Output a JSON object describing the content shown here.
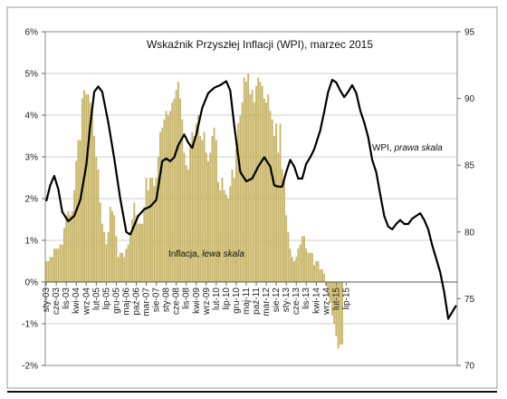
{
  "chart_data": {
    "type": "bar+line",
    "title": "Wskaźnik Przyszłej Inflacji (WPI), marzec 2015",
    "y_left": {
      "ylim": [
        -2,
        6
      ],
      "ticks": [
        -2,
        -1,
        0,
        1,
        2,
        3,
        4,
        5,
        6
      ],
      "tick_labels": [
        "-2%",
        "-1%",
        "0%",
        "1%",
        "2%",
        "3%",
        "4%",
        "5%",
        "6%"
      ]
    },
    "y_right": {
      "ylim": [
        70,
        95
      ],
      "ticks": [
        70,
        75,
        80,
        85,
        90,
        95
      ],
      "tick_labels": [
        "70",
        "75",
        "80",
        "85",
        "90",
        "95"
      ]
    },
    "x_tick_labels": [
      "sty-03",
      "cze-03",
      "lis-03",
      "kwi-04",
      "wrz-04",
      "lut-05",
      "lip-05",
      "gru-05",
      "maj-06",
      "paź-06",
      "mar-07",
      "sie-07",
      "sty-08",
      "cze-08",
      "lis-08",
      "kwi-09",
      "wrz-09",
      "lut-10",
      "lip-10",
      "gru-10",
      "maj-11",
      "paź-11",
      "mar-12",
      "sie-12",
      "sty-13",
      "cze-13",
      "lis-13",
      "kwi-14",
      "wrz-14",
      "lut-15",
      "lip-15"
    ],
    "grid": true,
    "annotations": {
      "wpi_label_main": "WPI,",
      "wpi_label_italic": "prawa skala",
      "infl_label_main": "Inflacja,",
      "infl_label_italic": "lewa skala"
    },
    "series": [
      {
        "name": "Inflacja",
        "type": "bar",
        "axis": "left",
        "color": "#c7b56a",
        "values": [
          0.5,
          0.5,
          0.6,
          0.6,
          0.8,
          0.8,
          0.8,
          0.9,
          0.9,
          1.3,
          1.6,
          1.7,
          1.6,
          1.7,
          2.2,
          2.9,
          3.4,
          3.4,
          4.4,
          4.6,
          4.5,
          4.5,
          4.3,
          4.1,
          3.5,
          3.0,
          2.7,
          1.9,
          1.4,
          1.2,
          0.9,
          1.2,
          1.8,
          1.7,
          1.6,
          1.1,
          0.6,
          0.7,
          0.7,
          0.6,
          0.8,
          0.9,
          1.1,
          1.5,
          1.9,
          1.6,
          1.4,
          1.4,
          1.4,
          1.8,
          2.5,
          2.2,
          2.5,
          2.5,
          2.3,
          2.5,
          3.0,
          3.6,
          3.7,
          3.9,
          4.1,
          4.0,
          4.1,
          4.3,
          4.4,
          4.6,
          4.8,
          4.4,
          3.9,
          3.1,
          2.8,
          2.7,
          3.3,
          3.6,
          3.5,
          3.8,
          4.0,
          3.5,
          3.4,
          3.6,
          3.1,
          2.9,
          3.1,
          3.5,
          3.7,
          3.4,
          2.4,
          2.2,
          2.5,
          2.2,
          2.1,
          2.0,
          2.3,
          2.7,
          2.5,
          3.2,
          3.8,
          4.0,
          4.3,
          4.9,
          4.8,
          5.0,
          4.5,
          4.6,
          4.3,
          4.7,
          4.9,
          4.8,
          4.7,
          4.4,
          4.3,
          4.5,
          4.1,
          3.9,
          3.5,
          3.8,
          3.1,
          3.8,
          2.7,
          2.4,
          1.6,
          1.2,
          0.8,
          0.6,
          0.5,
          0.6,
          0.8,
          0.9,
          1.1,
          1.1,
          0.8,
          0.7,
          0.7,
          0.7,
          0.4,
          0.5,
          0.5,
          0.3,
          0.3,
          0.2,
          -0.1,
          -0.3,
          -0.5,
          -0.8,
          -1.0,
          -1.3,
          -1.6,
          -1.5,
          -1.5
        ]
      },
      {
        "name": "WPI",
        "type": "line",
        "axis": "right",
        "color": "#000000",
        "points": [
          [
            0,
            82.3
          ],
          [
            2,
            83.5
          ],
          [
            4,
            84.2
          ],
          [
            6,
            83.2
          ],
          [
            8,
            81.5
          ],
          [
            11,
            80.8
          ],
          [
            14,
            81.2
          ],
          [
            17,
            82.4
          ],
          [
            20,
            85.0
          ],
          [
            22,
            88.0
          ],
          [
            24,
            90.5
          ],
          [
            26,
            90.9
          ],
          [
            28,
            90.5
          ],
          [
            31,
            88.2
          ],
          [
            34,
            85.5
          ],
          [
            37,
            82.5
          ],
          [
            40,
            80.0
          ],
          [
            42,
            79.8
          ],
          [
            44,
            80.5
          ],
          [
            46,
            81.2
          ],
          [
            49,
            81.7
          ],
          [
            52,
            81.9
          ],
          [
            55,
            82.4
          ],
          [
            58,
            85.3
          ],
          [
            60,
            85.5
          ],
          [
            62,
            85.3
          ],
          [
            64,
            85.6
          ],
          [
            66,
            86.5
          ],
          [
            69,
            87.3
          ],
          [
            71,
            86.7
          ],
          [
            73,
            86.3
          ],
          [
            75,
            87.3
          ],
          [
            78,
            89.3
          ],
          [
            81,
            90.4
          ],
          [
            84,
            90.8
          ],
          [
            87,
            91.0
          ],
          [
            90,
            91.3
          ],
          [
            92,
            90.6
          ],
          [
            94,
            88.0
          ],
          [
            97,
            84.5
          ],
          [
            100,
            83.8
          ],
          [
            103,
            84.0
          ],
          [
            106,
            84.9
          ],
          [
            109,
            85.6
          ],
          [
            112,
            84.9
          ],
          [
            114,
            83.5
          ],
          [
            116,
            83.4
          ],
          [
            118,
            83.4
          ],
          [
            120,
            84.5
          ],
          [
            122,
            85.4
          ],
          [
            124,
            84.9
          ],
          [
            126,
            84.0
          ],
          [
            128,
            84.0
          ],
          [
            130,
            85.1
          ],
          [
            132,
            85.6
          ],
          [
            134,
            86.2
          ],
          [
            137,
            87.6
          ],
          [
            139,
            89.0
          ],
          [
            141,
            90.5
          ],
          [
            143,
            91.4
          ],
          [
            145,
            91.2
          ],
          [
            147,
            90.6
          ],
          [
            149,
            90.1
          ],
          [
            151,
            90.5
          ],
          [
            153,
            91.0
          ],
          [
            155,
            90.4
          ],
          [
            157,
            89.1
          ],
          [
            159,
            88.2
          ],
          [
            161,
            87.1
          ],
          [
            163,
            85.4
          ],
          [
            165,
            84.5
          ],
          [
            167,
            82.8
          ],
          [
            169,
            81.2
          ],
          [
            171,
            80.4
          ],
          [
            173,
            80.2
          ],
          [
            175,
            80.6
          ],
          [
            177,
            80.9
          ],
          [
            179,
            80.6
          ],
          [
            181,
            80.6
          ],
          [
            183,
            81.0
          ],
          [
            185,
            81.2
          ],
          [
            187,
            81.4
          ],
          [
            189,
            80.9
          ],
          [
            191,
            80.2
          ],
          [
            193,
            79.0
          ],
          [
            195,
            78.0
          ],
          [
            197,
            77.0
          ],
          [
            199,
            75.5
          ],
          [
            201,
            73.5
          ],
          [
            203,
            74.0
          ],
          [
            205,
            74.5
          ]
        ]
      }
    ]
  }
}
